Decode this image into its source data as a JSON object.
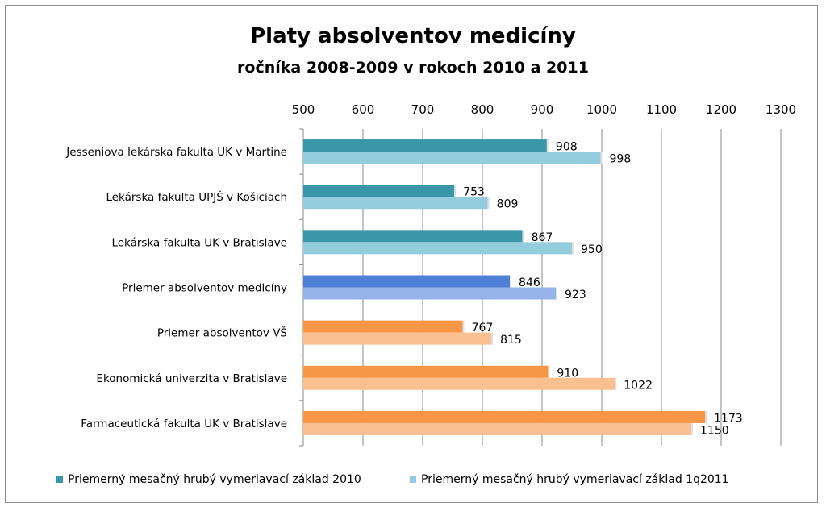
{
  "chart_data": {
    "type": "bar",
    "orientation": "horizontal",
    "title": "Platy absolventov medicíny",
    "subtitle": "ročníka 2008-2009 v rokoch 2010 a 2011",
    "xlim": [
      500,
      1300
    ],
    "xticks": [
      500,
      600,
      700,
      800,
      900,
      1000,
      1100,
      1200,
      1300
    ],
    "grid": true,
    "legend_position": "bottom",
    "categories": [
      "Jesseniova lekárska fakulta UK v Martine",
      "Lekárska fakulta UPJŠ v Košiciach",
      "Lekárska fakulta UK v Bratislave",
      "Priemer absolventov medicíny",
      "Priemer absolventov VŠ",
      "Ekonomická univerzita v Bratislave",
      "Farmaceutická fakulta UK v Bratislave"
    ],
    "series": [
      {
        "name": "Priemerný mesačný hrubý vymeriavací základ 2010",
        "values": [
          908,
          753,
          867,
          846,
          767,
          910,
          1173
        ],
        "colors": [
          "#3a97a8",
          "#3a97a8",
          "#3a97a8",
          "#4f81d6",
          "#f79646",
          "#f79646",
          "#f79646"
        ]
      },
      {
        "name": "Priemerný mesačný hrubý vymeriavací základ 1q2011",
        "values": [
          998,
          809,
          950,
          923,
          815,
          1022,
          1150
        ],
        "colors": [
          "#93cddd",
          "#93cddd",
          "#93cddd",
          "#95b3e8",
          "#fac090",
          "#fac090",
          "#fac090"
        ]
      }
    ],
    "legend_colors": [
      "#3a97a8",
      "#93cddd"
    ]
  }
}
